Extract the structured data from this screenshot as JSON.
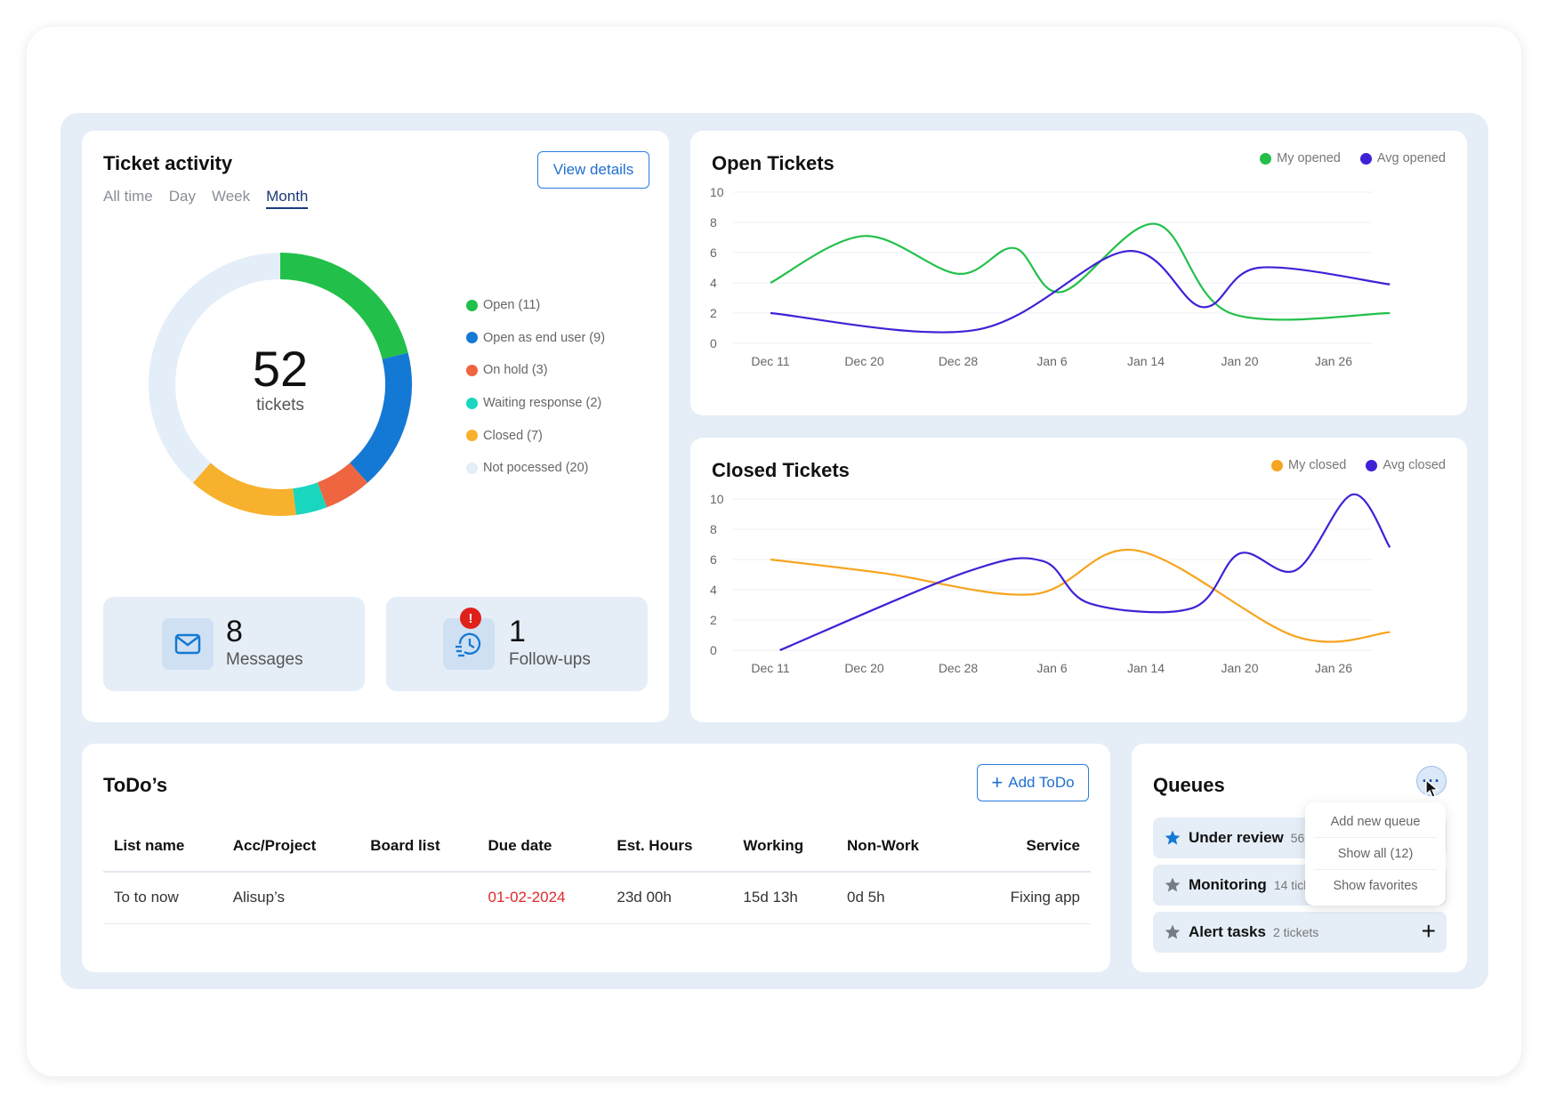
{
  "activity": {
    "title": "Ticket activity",
    "view_details": "View details",
    "filters": [
      "All time",
      "Day",
      "Week",
      "Month"
    ],
    "active_filter": "Month",
    "total": "52",
    "total_label": "tickets",
    "segments": [
      {
        "label": "Open (11)",
        "value": 11,
        "color": "#22c04a"
      },
      {
        "label": "Open as end user (9)",
        "value": 9,
        "color": "#1479d4"
      },
      {
        "label": "On hold (3)",
        "value": 3,
        "color": "#ee6540"
      },
      {
        "label": "Waiting response (2)",
        "value": 2,
        "color": "#19d6bf"
      },
      {
        "label": "Closed (7)",
        "value": 7,
        "color": "#f7b12c"
      },
      {
        "label": "Not pocessed (20)",
        "value": 20,
        "color": "#e4eef8"
      }
    ],
    "messages": {
      "count": "8",
      "label": "Messages",
      "icon": "mail-icon"
    },
    "followups": {
      "count": "1",
      "label": "Follow-ups",
      "icon": "clock-history-icon",
      "alert": "!"
    }
  },
  "chart_data": [
    {
      "type": "line",
      "title": "Open Tickets",
      "x": [
        "Dec 11",
        "Dec 20",
        "Dec 28",
        "Jan 6",
        "Jan 14",
        "Jan 20",
        "Jan 26"
      ],
      "yticks": [
        0,
        2,
        4,
        6,
        8,
        10
      ],
      "ylim": [
        0,
        10
      ],
      "legend": "top-right",
      "grid": true,
      "series": [
        {
          "name": "My opened",
          "color": "#22c04a",
          "points": [
            [
              0,
              4
            ],
            [
              1,
              7.1
            ],
            [
              2,
              4.6
            ],
            [
              2.6,
              6.3
            ],
            [
              3.1,
              3.4
            ],
            [
              4.1,
              7.9
            ],
            [
              4.9,
              2
            ],
            [
              6.6,
              2
            ]
          ]
        },
        {
          "name": "Avg opened",
          "color": "#3f22d6",
          "points": [
            [
              0,
              2
            ],
            [
              2.2,
              0.9
            ],
            [
              3.8,
              6.1
            ],
            [
              4.6,
              2.4
            ],
            [
              5.2,
              5
            ],
            [
              6.6,
              3.9
            ]
          ]
        }
      ]
    },
    {
      "type": "line",
      "title": "Closed Tickets",
      "x": [
        "Dec 11",
        "Dec 20",
        "Dec 28",
        "Jan 6",
        "Jan 14",
        "Jan 20",
        "Jan 26"
      ],
      "yticks": [
        0,
        2,
        4,
        6,
        8,
        10
      ],
      "ylim": [
        0,
        10
      ],
      "legend": "top-right",
      "grid": true,
      "series": [
        {
          "name": "My closed",
          "color": "#f7a41f",
          "points": [
            [
              0,
              6
            ],
            [
              1.2,
              5.1
            ],
            [
              2.8,
              3.7
            ],
            [
              3.9,
              6.6
            ],
            [
              5.6,
              0.9
            ],
            [
              6.6,
              1.2
            ]
          ]
        },
        {
          "name": "Avg closed",
          "color": "#3f22d6",
          "points": [
            [
              0.1,
              0
            ],
            [
              2.1,
              5.2
            ],
            [
              2.9,
              5.9
            ],
            [
              3.4,
              3.1
            ],
            [
              4.5,
              2.8
            ],
            [
              5,
              6.4
            ],
            [
              5.6,
              5.3
            ],
            [
              6.2,
              10.3
            ],
            [
              6.6,
              6.8
            ]
          ]
        }
      ]
    }
  ],
  "open_chart": {
    "title": "Open Tickets",
    "legend": [
      "My opened",
      "Avg opened"
    ]
  },
  "closed_chart": {
    "title": "Closed Tickets",
    "legend": [
      "My closed",
      "Avg closed"
    ]
  },
  "todo": {
    "title": "ToDo’s",
    "add_label": "Add ToDo",
    "columns": [
      "List name",
      "Acc/Project",
      "Board list",
      "Due date",
      "Est. Hours",
      "Working",
      "Non-Work",
      "Service"
    ],
    "rows": [
      [
        "To to now",
        "Alisup’s",
        "",
        "01-02-2024",
        "23d 00h",
        "15d 13h",
        "0d 5h",
        "Fixing app"
      ]
    ]
  },
  "queues": {
    "title": "Queues",
    "more_label": "···",
    "items": [
      {
        "name": "Under review",
        "count": "56 tickets",
        "star_color": "#1479d4"
      },
      {
        "name": "Monitoring",
        "count": "14 tickets",
        "star_color": "#777d86"
      },
      {
        "name": "Alert tasks",
        "count": "2 tickets",
        "star_color": "#777d86"
      }
    ],
    "add_icon": "+",
    "menu": [
      "Add new queue",
      "Show all (12)",
      "Show favorites"
    ]
  }
}
